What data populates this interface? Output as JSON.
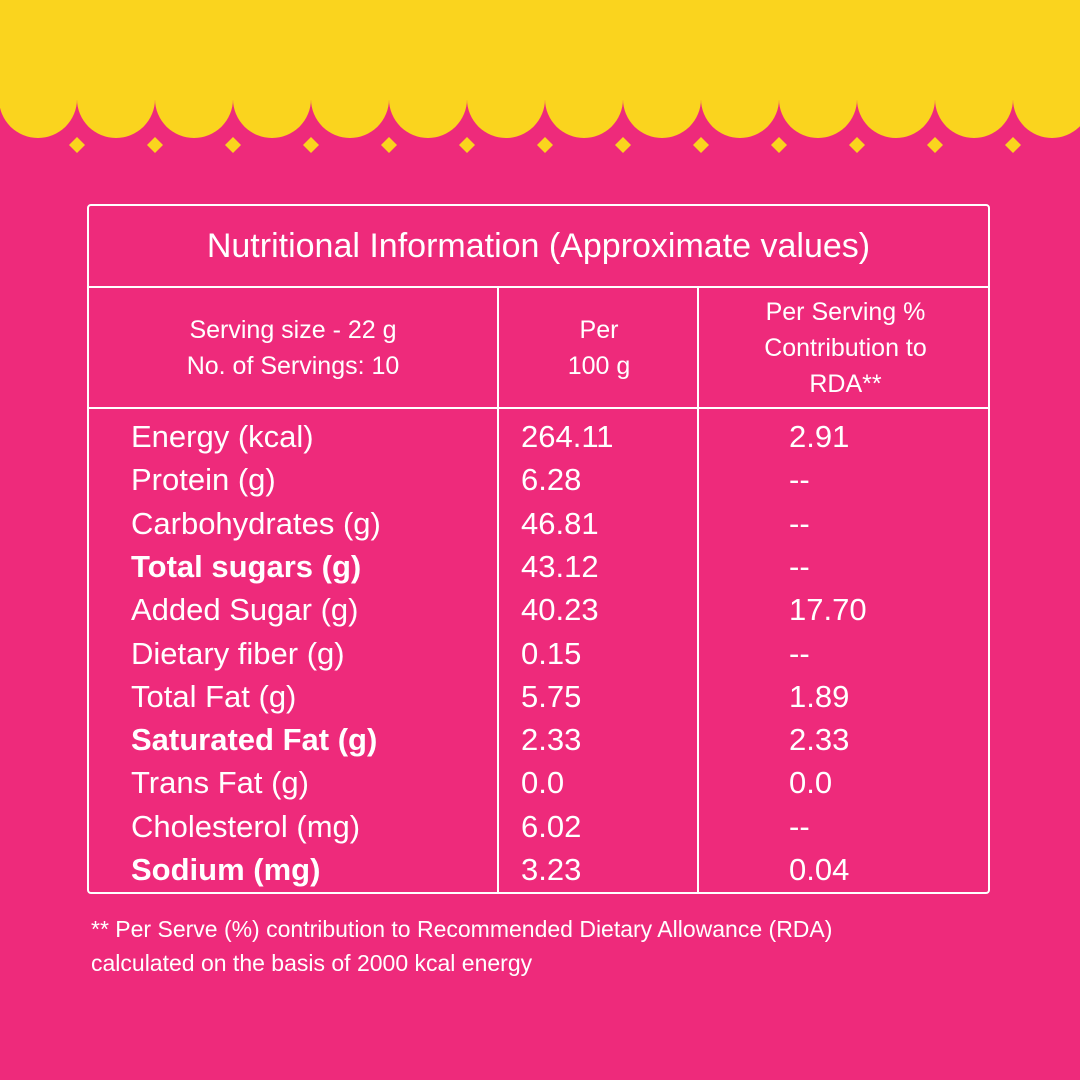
{
  "colors": {
    "background": "#EE2A7B",
    "accent": "#FAD41E",
    "text": "#FFFFFF"
  },
  "decoration": {
    "top_border": "yellow-scallop-with-diamonds"
  },
  "table": {
    "title": "Nutritional Information (Approximate values)",
    "header": {
      "col1": [
        "Serving size - 22 g",
        "No. of Servings: 10"
      ],
      "col2": [
        "Per",
        "100 g"
      ],
      "col3": [
        "Per Serving %",
        "Contribution to",
        "RDA**"
      ]
    },
    "rows": [
      {
        "name": "Energy (kcal)",
        "per100": "264.11",
        "rda": "2.91",
        "bold": false
      },
      {
        "name": "Protein (g)",
        "per100": "6.28",
        "rda": "--",
        "bold": false
      },
      {
        "name": "Carbohydrates (g)",
        "per100": "46.81",
        "rda": "--",
        "bold": false
      },
      {
        "name": "Total sugars (g)",
        "per100": "43.12",
        "rda": "--",
        "bold": true
      },
      {
        "name": "Added Sugar (g)",
        "per100": "40.23",
        "rda": "17.70",
        "bold": false
      },
      {
        "name": "Dietary fiber (g)",
        "per100": "0.15",
        "rda": "--",
        "bold": false
      },
      {
        "name": "Total Fat (g)",
        "per100": "5.75",
        "rda": "1.89",
        "bold": false
      },
      {
        "name": "Saturated Fat (g)",
        "per100": "2.33",
        "rda": "2.33",
        "bold": true
      },
      {
        "name": "Trans Fat (g)",
        "per100": "0.0",
        "rda": "0.0",
        "bold": false
      },
      {
        "name": "Cholesterol (mg)",
        "per100": "6.02",
        "rda": "--",
        "bold": false
      },
      {
        "name": "Sodium (mg)",
        "per100": "3.23",
        "rda": "0.04",
        "bold": true
      }
    ]
  },
  "footnote": {
    "line1": "** Per Serve (%) contribution to Recommended Dietary Allowance (RDA)",
    "line2": "calculated on the basis of 2000 kcal energy"
  }
}
